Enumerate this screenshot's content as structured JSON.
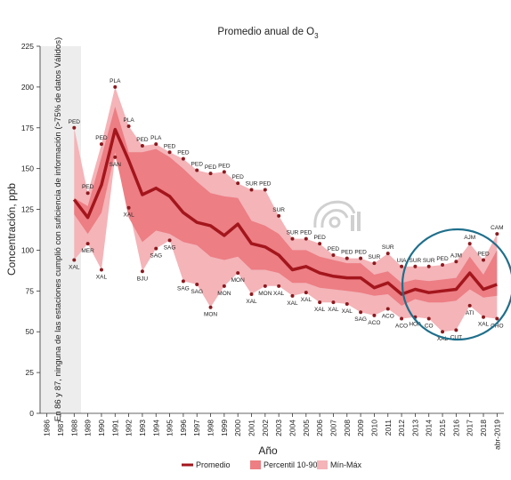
{
  "chart_data": {
    "type": "area",
    "title": "Promedio anual de O",
    "title_sub": "3",
    "xlabel": "Año",
    "ylabel": "Concentración, ppb",
    "ylim": [
      0,
      225
    ],
    "yticks": [
      0,
      25,
      50,
      75,
      100,
      125,
      150,
      175,
      200,
      225
    ],
    "x": [
      "1986",
      "1987",
      "1988",
      "1989",
      "1990",
      "1991",
      "1992",
      "1993",
      "1994",
      "1995",
      "1996",
      "1997",
      "1998",
      "1999",
      "2000",
      "2001",
      "2002",
      "2003",
      "2004",
      "2005",
      "2006",
      "2007",
      "2008",
      "2009",
      "2010",
      "2011",
      "2012",
      "2013",
      "2014",
      "2015",
      "2016",
      "2017",
      "2018",
      "abr-2019"
    ],
    "no_data_note": "En 86 y 87, ninguna de las estaciones cumplió con suficiencia de información (>75% de datos Válidos)",
    "no_data_years": [
      "1986",
      "1987"
    ],
    "series": [
      {
        "name": "Promedio",
        "color": "#a3161c",
        "values": [
          null,
          null,
          131,
          120,
          140,
          174,
          155,
          134,
          138,
          133,
          123,
          117,
          115,
          109,
          116,
          104,
          102,
          97,
          88,
          90,
          86,
          84,
          83,
          83,
          77,
          80,
          73,
          76,
          74,
          75,
          76,
          86,
          76,
          79
        ]
      },
      {
        "name": "Percentil 10-90",
        "color": "#ec7e84",
        "low": [
          null,
          null,
          122,
          110,
          123,
          160,
          120,
          105,
          112,
          110,
          105,
          103,
          96,
          94,
          96,
          88,
          88,
          86,
          80,
          80,
          77,
          76,
          75,
          74,
          72,
          73,
          66,
          70,
          68,
          68,
          69,
          76,
          71,
          72
        ],
        "high": [
          null,
          null,
          132,
          127,
          157,
          188,
          160,
          160,
          162,
          157,
          150,
          142,
          135,
          133,
          132,
          118,
          115,
          110,
          100,
          100,
          96,
          94,
          92,
          92,
          85,
          87,
          80,
          82,
          81,
          82,
          83,
          96,
          85,
          100
        ]
      },
      {
        "name": "Mín-Máx",
        "color": "#f4b4b8",
        "min": [
          null,
          null,
          94,
          104,
          88,
          157,
          126,
          87,
          101,
          106,
          81,
          79,
          65,
          78,
          86,
          73,
          78,
          78,
          72,
          74,
          68,
          68,
          67,
          62,
          60,
          64,
          58,
          59,
          58,
          50,
          51,
          66,
          59,
          58
        ],
        "max": [
          null,
          null,
          175,
          135,
          165,
          200,
          176,
          164,
          165,
          160,
          156,
          149,
          147,
          148,
          141,
          137,
          137,
          121,
          107,
          107,
          104,
          97,
          95,
          95,
          92,
          98,
          90,
          90,
          90,
          91,
          93,
          104,
          94,
          110
        ]
      }
    ],
    "station_labels": {
      "max": [
        "",
        "",
        "PED",
        "PED",
        "PED",
        "PLA",
        "PLA",
        "PED",
        "PLA",
        "PED",
        "PED",
        "PED",
        "PED",
        "PED",
        "PED",
        "SUR",
        "PED",
        "SUR",
        "SUR",
        "PED",
        "PED",
        "PED",
        "PED",
        "PED",
        "SUR",
        "SUR",
        "UIA",
        "SUR",
        "SUR",
        "PED",
        "AJM",
        "AJM",
        "PED",
        "CAM"
      ],
      "min": [
        "",
        "",
        "XAL",
        "MER",
        "XAL",
        "SAN",
        "XAL",
        "BJU",
        "SAG",
        "SAG",
        "SAG",
        "SAG",
        "MON",
        "MON",
        "MON",
        "XAL",
        "MON",
        "XAL",
        "XAL",
        "XAL",
        "XAL",
        "XAL",
        "XAL",
        "SAG",
        "ACO",
        "ACO",
        "ACO",
        "HOA",
        "CO",
        "XAL",
        "CUT",
        "ATI",
        "XAL",
        "CHO"
      ]
    },
    "legend": [
      "Promedio",
      "Percentil 10-90",
      "Mín-Máx"
    ],
    "legend_position": "bottom",
    "grid": false
  }
}
